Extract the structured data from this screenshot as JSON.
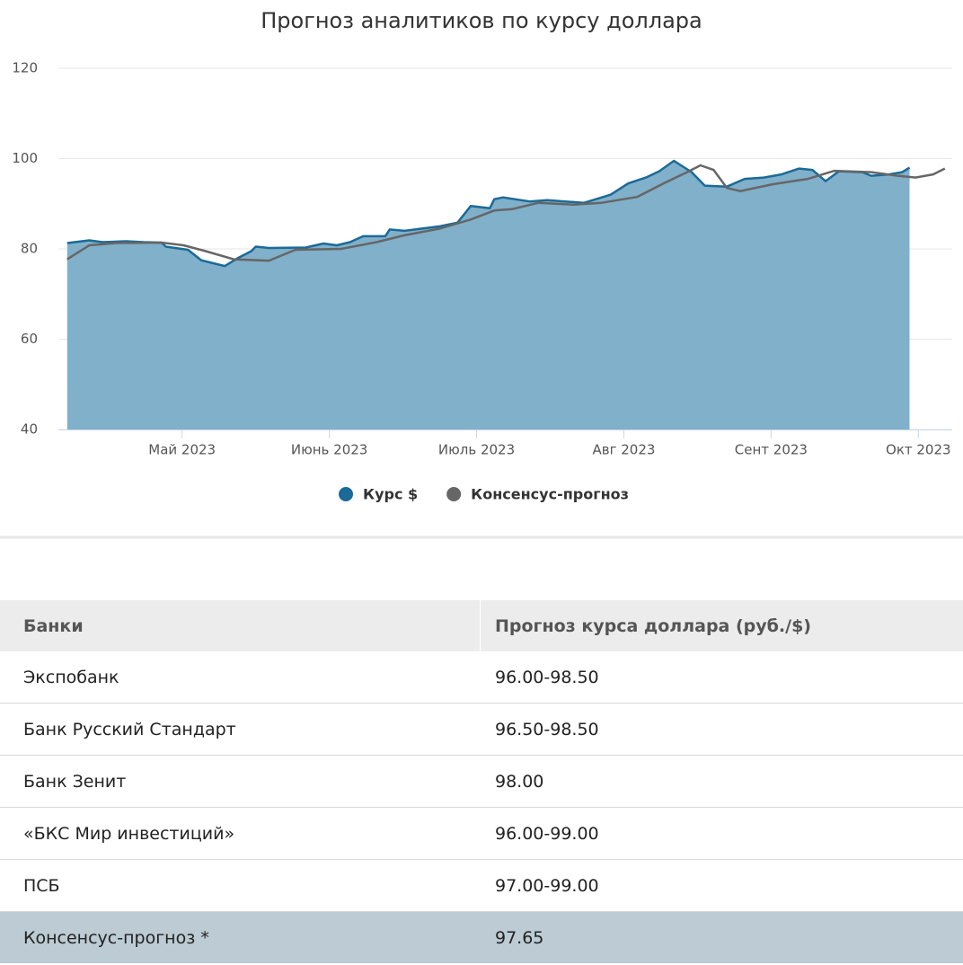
{
  "chart_data": {
    "type": "area",
    "title": "Прогноз аналитиков по курсу доллара",
    "ylim": [
      40,
      120
    ],
    "yticks": [
      40,
      60,
      80,
      100,
      120
    ],
    "grid": true,
    "xlim": [
      4.16,
      10.23
    ],
    "xticks": [
      {
        "value": 5,
        "label": "Май 2023"
      },
      {
        "value": 6,
        "label": "Июнь 2023"
      },
      {
        "value": 7,
        "label": "Июль 2023"
      },
      {
        "value": 8,
        "label": "Авг 2023"
      },
      {
        "value": 9,
        "label": "Сент 2023"
      },
      {
        "value": 10,
        "label": "Окт 2023"
      }
    ],
    "legend": "bottom",
    "series": [
      {
        "name": "Курс $",
        "color": "#1b6a98",
        "fill": "#80b0ca",
        "kind": "area",
        "x": [
          4.22,
          4.37,
          4.46,
          4.62,
          4.74,
          4.86,
          4.89,
          5.04,
          5.13,
          5.29,
          5.38,
          5.47,
          5.5,
          5.59,
          5.84,
          5.96,
          6.05,
          6.14,
          6.23,
          6.38,
          6.41,
          6.51,
          6.63,
          6.75,
          6.87,
          6.96,
          7.09,
          7.12,
          7.18,
          7.36,
          7.48,
          7.6,
          7.73,
          7.91,
          8.03,
          8.15,
          8.24,
          8.34,
          8.46,
          8.55,
          8.7,
          8.82,
          8.95,
          9.07,
          9.19,
          9.28,
          9.37,
          9.46,
          9.62,
          9.68,
          9.8,
          9.89,
          9.94
        ],
        "values": [
          81.3,
          81.9,
          81.5,
          81.7,
          81.5,
          81.4,
          80.5,
          79.8,
          77.5,
          76.2,
          78,
          79.5,
          80.5,
          80.2,
          80.3,
          81.2,
          80.8,
          81.5,
          82.8,
          82.8,
          84.3,
          84,
          84.5,
          85,
          85.8,
          89.5,
          89,
          91,
          91.4,
          90.5,
          90.8,
          90.5,
          90.2,
          92,
          94.5,
          95.8,
          97.2,
          99.5,
          97,
          94,
          93.8,
          95.5,
          95.8,
          96.5,
          97.8,
          97.5,
          95,
          97.2,
          97,
          96.2,
          96.5,
          97,
          98
        ]
      },
      {
        "name": "Консенсус-прогноз",
        "color": "#666666",
        "kind": "line",
        "x": [
          4.22,
          4.37,
          4.55,
          4.86,
          5.01,
          5.16,
          5.35,
          5.59,
          5.77,
          6.08,
          6.32,
          6.51,
          6.75,
          6.96,
          7.12,
          7.24,
          7.42,
          7.66,
          7.85,
          8.09,
          8.27,
          8.43,
          8.52,
          8.61,
          8.7,
          8.79,
          9.01,
          9.25,
          9.43,
          9.68,
          9.86,
          9.98,
          10.1,
          10.18
        ],
        "values": [
          77.7,
          80.8,
          81.3,
          81.4,
          80.8,
          79.5,
          77.7,
          77.4,
          79.8,
          80,
          81.5,
          83,
          84.5,
          86.5,
          88.5,
          88.8,
          90.2,
          89.8,
          90.2,
          91.5,
          94.5,
          97,
          98.5,
          97.5,
          93.5,
          92.8,
          94.3,
          95.5,
          97.3,
          97,
          96.2,
          95.8,
          96.5,
          97.8
        ]
      }
    ]
  },
  "table": {
    "header": [
      "Банки",
      "Прогноз курса доллара (руб./$)"
    ],
    "rows": [
      [
        "Экспобанк",
        "96.00-98.50"
      ],
      [
        "Банк Русский Стандарт",
        "96.50-98.50"
      ],
      [
        "Банк Зенит",
        "98.00"
      ],
      [
        "«БКС Мир инвестиций»",
        "96.00-99.00"
      ],
      [
        "ПСБ",
        "97.00-99.00"
      ],
      [
        "Консенсус-прогноз *",
        "97.65"
      ]
    ]
  }
}
